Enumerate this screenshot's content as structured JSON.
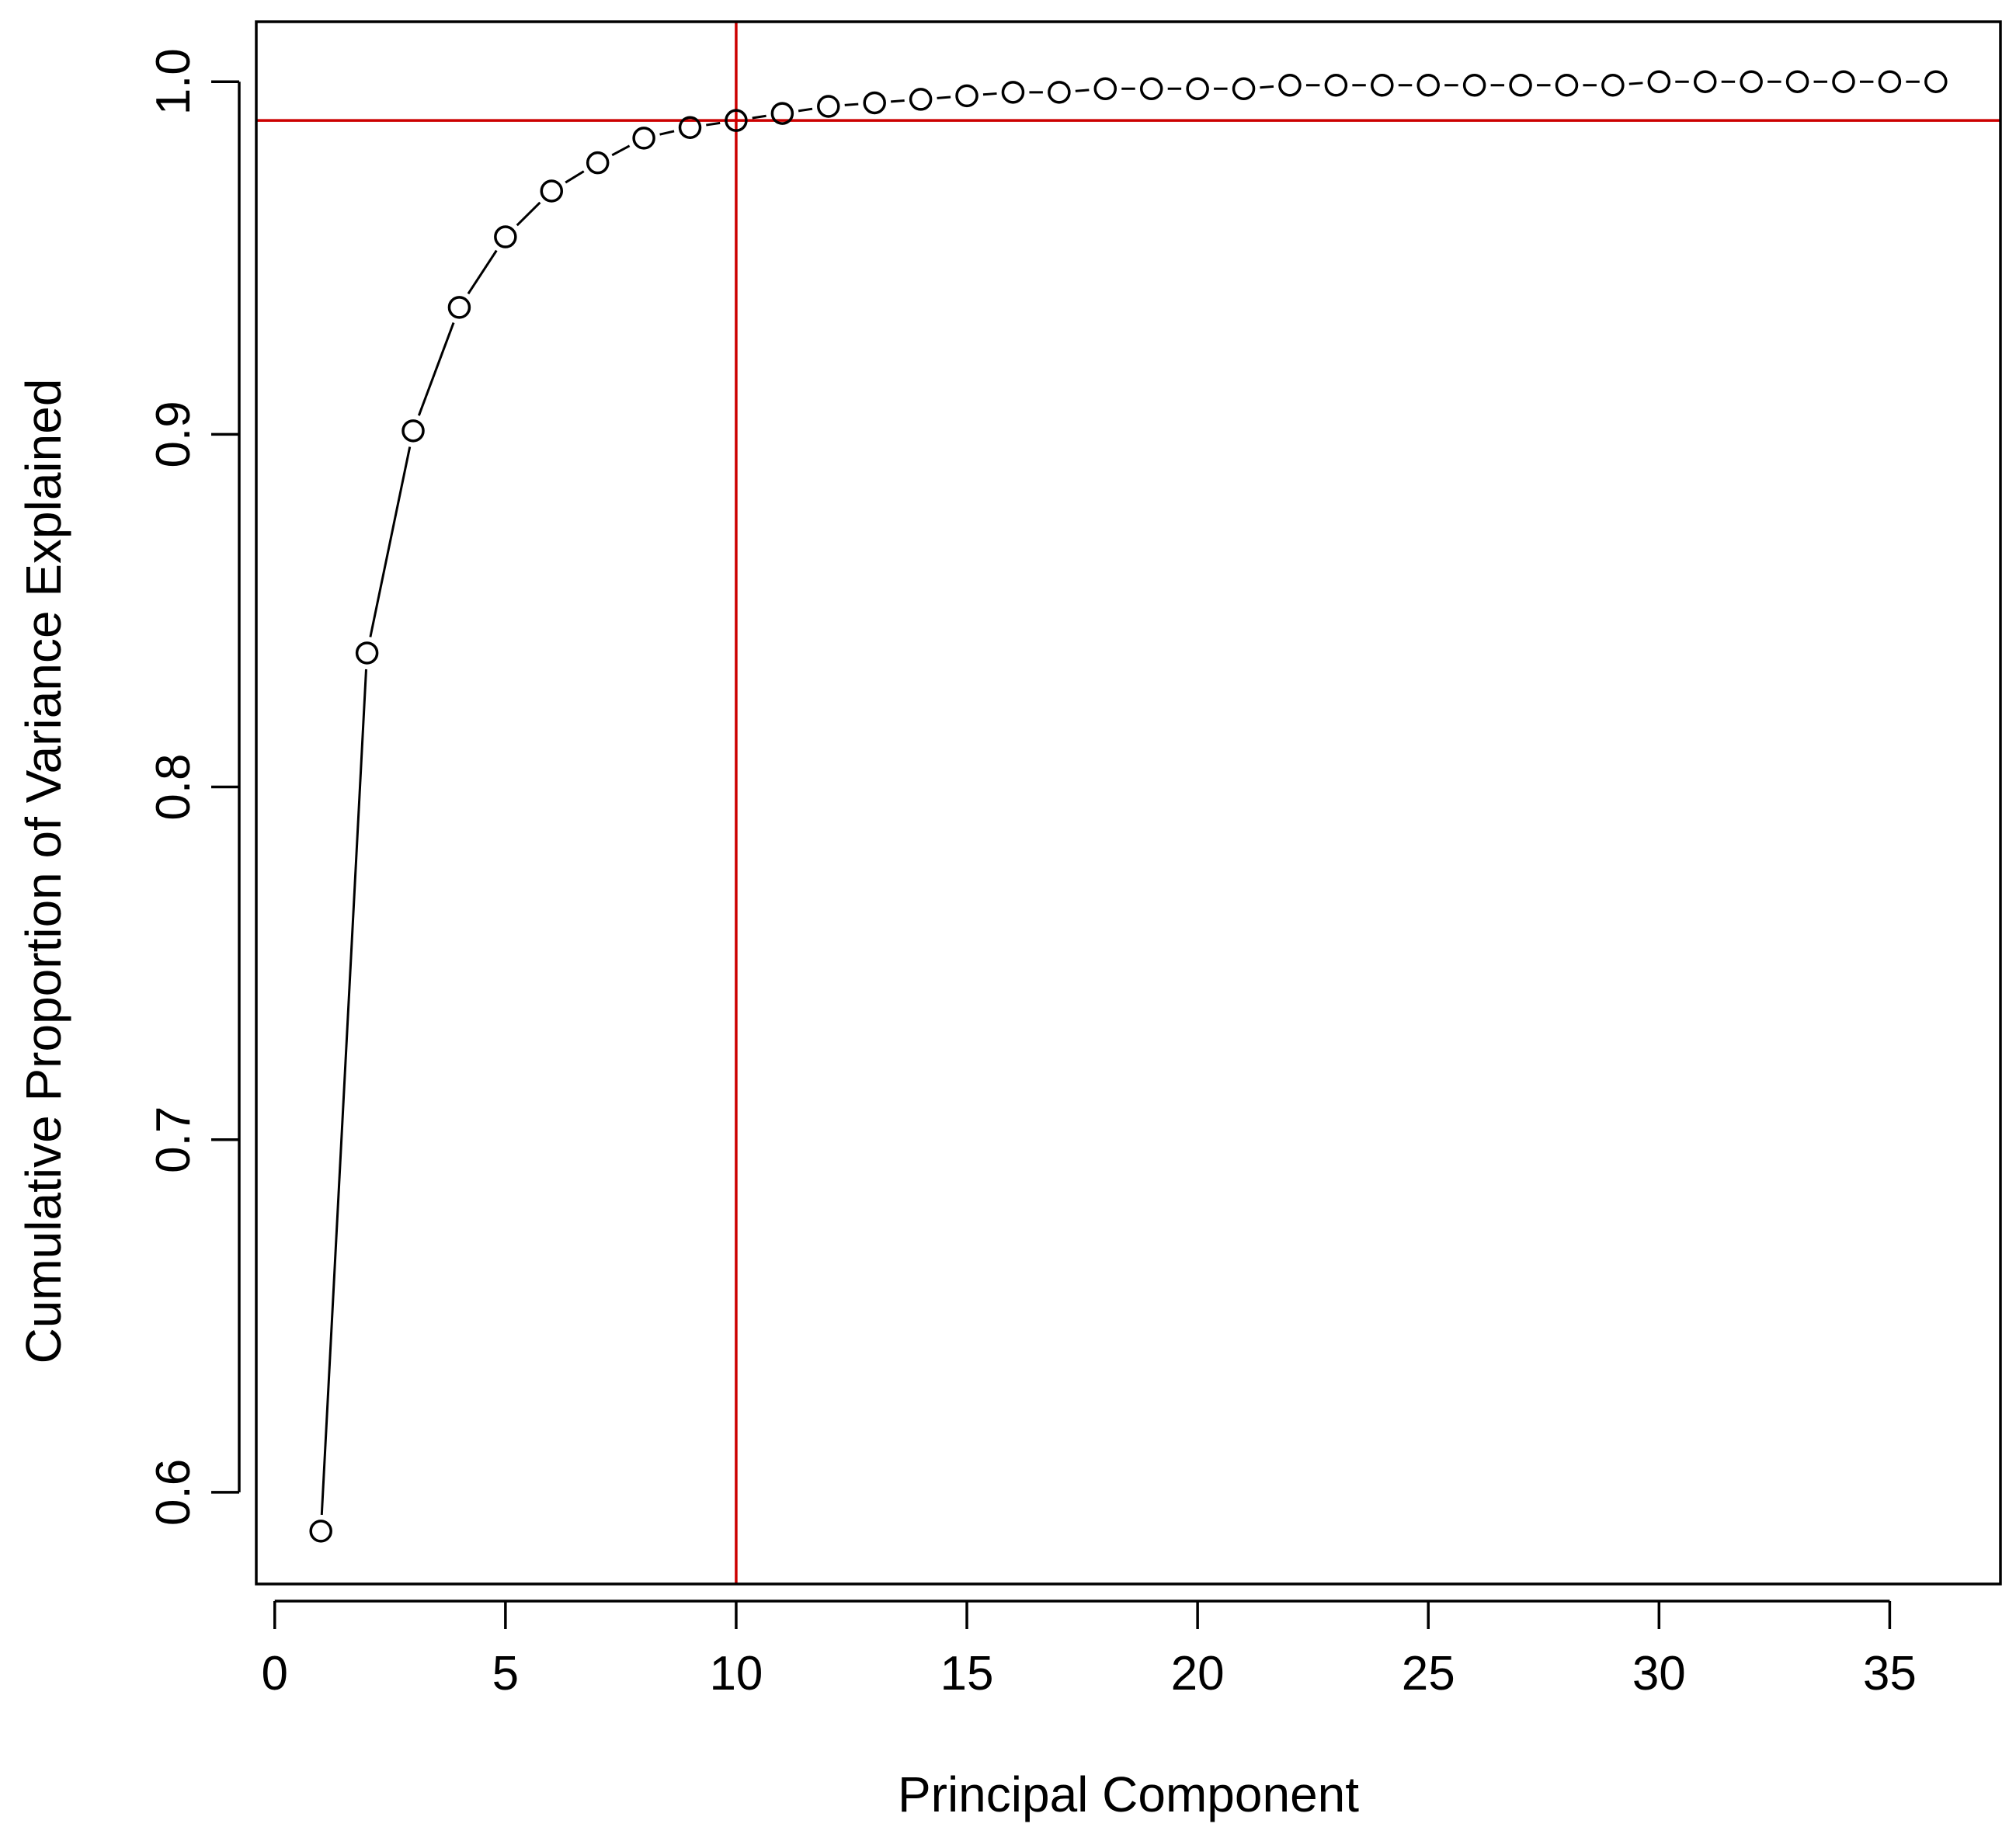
{
  "chart_data": {
    "type": "line",
    "title": "",
    "xlabel": "Principal Component",
    "ylabel": "Cumulative Proportion of Variance Explained",
    "xlim": [
      -0.4,
      37.4
    ],
    "ylim": [
      0.574,
      1.017
    ],
    "x_ticks": [
      0,
      5,
      10,
      15,
      20,
      25,
      30,
      35
    ],
    "x_tick_labels": [
      "0",
      "5",
      "10",
      "15",
      "20",
      "25",
      "30",
      "35"
    ],
    "y_ticks": [
      0.6,
      0.7,
      0.8,
      0.9,
      1.0
    ],
    "y_tick_labels": [
      "0.6",
      "0.7",
      "0.8",
      "0.9",
      "1.0"
    ],
    "grid": false,
    "legend": "none",
    "marker": "open-circle",
    "series": [
      {
        "x": [
          1,
          2,
          3,
          4,
          5,
          6,
          7,
          8,
          9,
          10,
          11,
          12,
          13,
          14,
          15,
          16,
          17,
          18,
          19,
          20,
          21,
          22,
          23,
          24,
          25,
          26,
          27,
          28,
          29,
          30,
          31,
          32,
          33,
          34,
          35,
          36
        ],
        "y": [
          0.589,
          0.838,
          0.901,
          0.936,
          0.956,
          0.969,
          0.977,
          0.984,
          0.987,
          0.989,
          0.991,
          0.993,
          0.994,
          0.995,
          0.996,
          0.997,
          0.997,
          0.998,
          0.998,
          0.998,
          0.998,
          0.999,
          0.999,
          0.999,
          0.999,
          0.999,
          0.999,
          0.999,
          0.999,
          1.0,
          1.0,
          1.0,
          1.0,
          1.0,
          1.0,
          1.0
        ],
        "color": "#000000"
      }
    ],
    "reference_lines": [
      {
        "orientation": "vertical",
        "value": 10,
        "color": "#cc0000"
      },
      {
        "orientation": "horizontal",
        "value": 0.989,
        "color": "#cc0000"
      }
    ]
  }
}
